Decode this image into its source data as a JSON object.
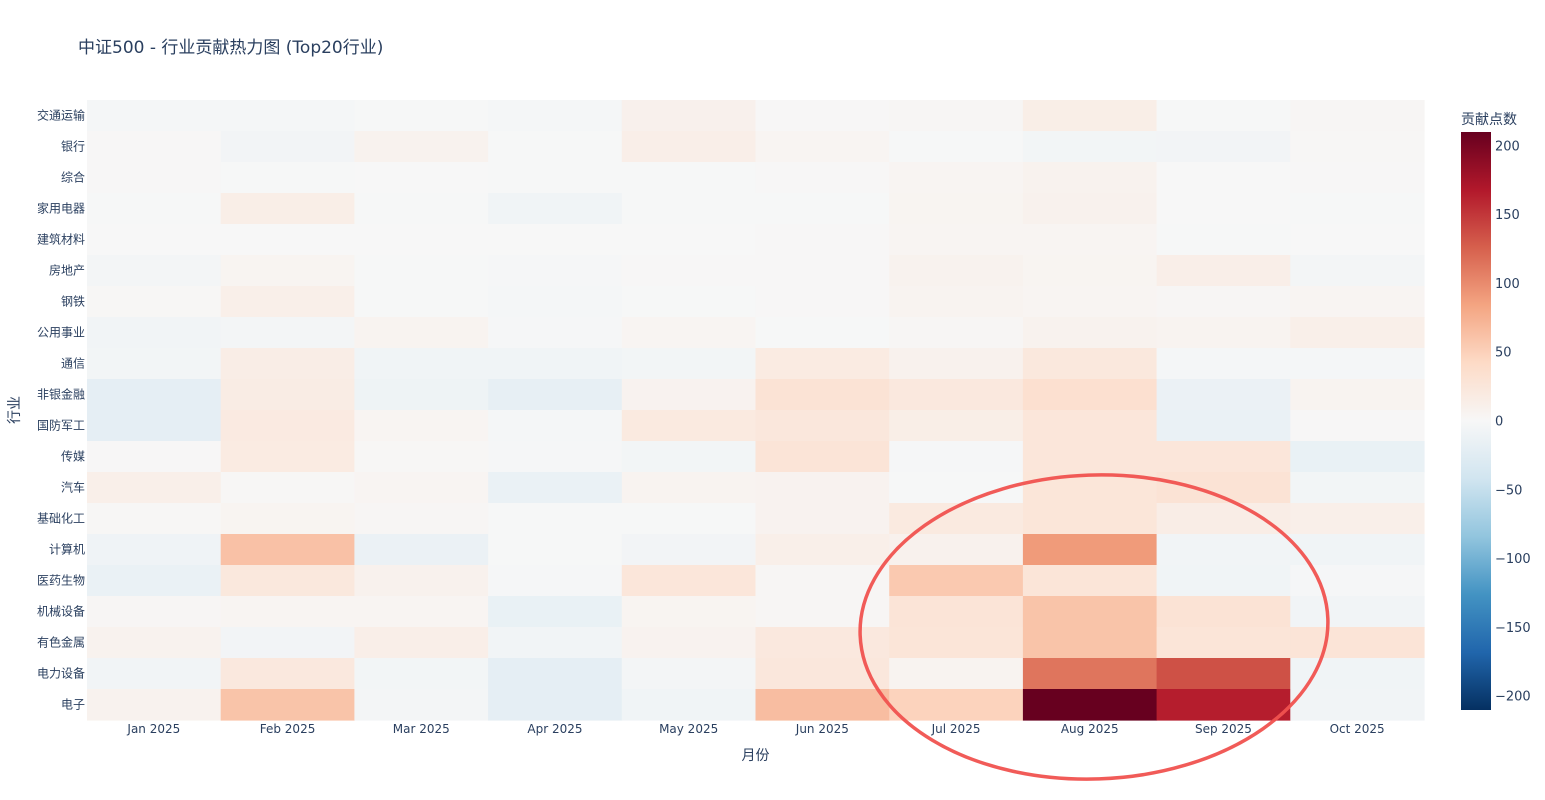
{
  "chart_data": {
    "type": "heatmap",
    "title": "中证500 - 行业贡献热力图 (Top20行业)",
    "xlabel": "月份",
    "ylabel": "行业",
    "x": [
      "Jan 2025",
      "Feb 2025",
      "Mar 2025",
      "Apr 2025",
      "May 2025",
      "Jun 2025",
      "Jul 2025",
      "Aug 2025",
      "Sep 2025",
      "Oct 2025"
    ],
    "y": [
      "交通运输",
      "银行",
      "综合",
      "家用电器",
      "建筑材料",
      "房地产",
      "钢铁",
      "公用事业",
      "通信",
      "非银金融",
      "国防军工",
      "传媒",
      "汽车",
      "基础化工",
      "计算机",
      "医药生物",
      "机械设备",
      "有色金属",
      "电力设备",
      "电子"
    ],
    "z": [
      [
        -3,
        -3,
        -1,
        -3,
        10,
        1,
        3,
        14,
        -1,
        3
      ],
      [
        1,
        -6,
        8,
        -1,
        13,
        4,
        -1,
        -5,
        -6,
        2
      ],
      [
        1,
        -1,
        0,
        -1,
        -1,
        1,
        4,
        8,
        0,
        1
      ],
      [
        -1,
        14,
        -1,
        -8,
        -1,
        -1,
        5,
        9,
        0,
        -1
      ],
      [
        0,
        0,
        0,
        0,
        0,
        1,
        4,
        4,
        -1,
        0
      ],
      [
        -4,
        5,
        -1,
        -2,
        1,
        1,
        8,
        5,
        13,
        -4
      ],
      [
        2,
        12,
        -1,
        -3,
        -1,
        1,
        6,
        4,
        3,
        4
      ],
      [
        -7,
        -4,
        6,
        -2,
        4,
        -1,
        3,
        8,
        6,
        12
      ],
      [
        -5,
        15,
        -8,
        -8,
        -5,
        18,
        9,
        23,
        -3,
        -3
      ],
      [
        -20,
        17,
        -10,
        -18,
        7,
        30,
        22,
        34,
        -13,
        6
      ],
      [
        -20,
        19,
        4,
        -3,
        20,
        24,
        14,
        25,
        -14,
        1
      ],
      [
        1,
        18,
        2,
        -2,
        -5,
        28,
        -2,
        25,
        25,
        -15
      ],
      [
        12,
        2,
        4,
        -14,
        6,
        7,
        -1,
        26,
        30,
        -5
      ],
      [
        2,
        5,
        3,
        -1,
        -1,
        7,
        20,
        26,
        15,
        12
      ],
      [
        -9,
        62,
        -13,
        -1,
        -6,
        12,
        9,
        90,
        -7,
        -8
      ],
      [
        -14,
        23,
        9,
        -2,
        25,
        3,
        56,
        27,
        -8,
        -2
      ],
      [
        3,
        4,
        4,
        -15,
        5,
        3,
        28,
        60,
        30,
        -7
      ],
      [
        8,
        -6,
        13,
        -7,
        7,
        22,
        27,
        60,
        27,
        28
      ],
      [
        -7,
        22,
        -5,
        -20,
        -4,
        24,
        6,
        113,
        135,
        -8
      ],
      [
        8,
        60,
        -4,
        -20,
        -8,
        65,
        48,
        210,
        165,
        -7
      ]
    ],
    "zlim": [
      -210,
      210
    ],
    "colorscale": "RdBu (reversed)",
    "colorbar": {
      "title": "贡献点数",
      "ticks": [
        200,
        150,
        100,
        50,
        0,
        -50,
        -100,
        -150,
        -200
      ],
      "ticklabels": [
        "200",
        "150",
        "100",
        "50",
        "0",
        "−50",
        "−100",
        "−150",
        "−200"
      ]
    },
    "annotations": [
      {
        "type": "ellipse",
        "color": "#f0524f",
        "note": "red hand-drawn ellipse around Jul–Sep 2025 for 汽车 to 电子"
      }
    ]
  }
}
